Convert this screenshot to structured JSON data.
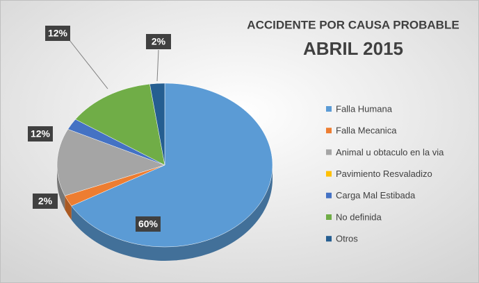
{
  "chart_data": {
    "type": "pie",
    "title": "ACCIDENTE POR CAUSA PROBABLE",
    "subtitle": "ABRIL 2015",
    "categories": [
      "Falla Humana",
      "Falla Mecanica",
      "Animal u obtaculo en la via",
      "Pavimiento Resvaladizo",
      "Carga Mal Estibada",
      "No definida",
      "Otros"
    ],
    "values": [
      60,
      2,
      12,
      0,
      2,
      12,
      2
    ],
    "value_labels": [
      "60%",
      "2%",
      "12%",
      null,
      null,
      "12%",
      "2%"
    ],
    "colors": [
      "#5b9bd5",
      "#ed7d31",
      "#a5a5a5",
      "#ffc000",
      "#4472c4",
      "#70ad47",
      "#255e91"
    ],
    "legend": "right"
  }
}
